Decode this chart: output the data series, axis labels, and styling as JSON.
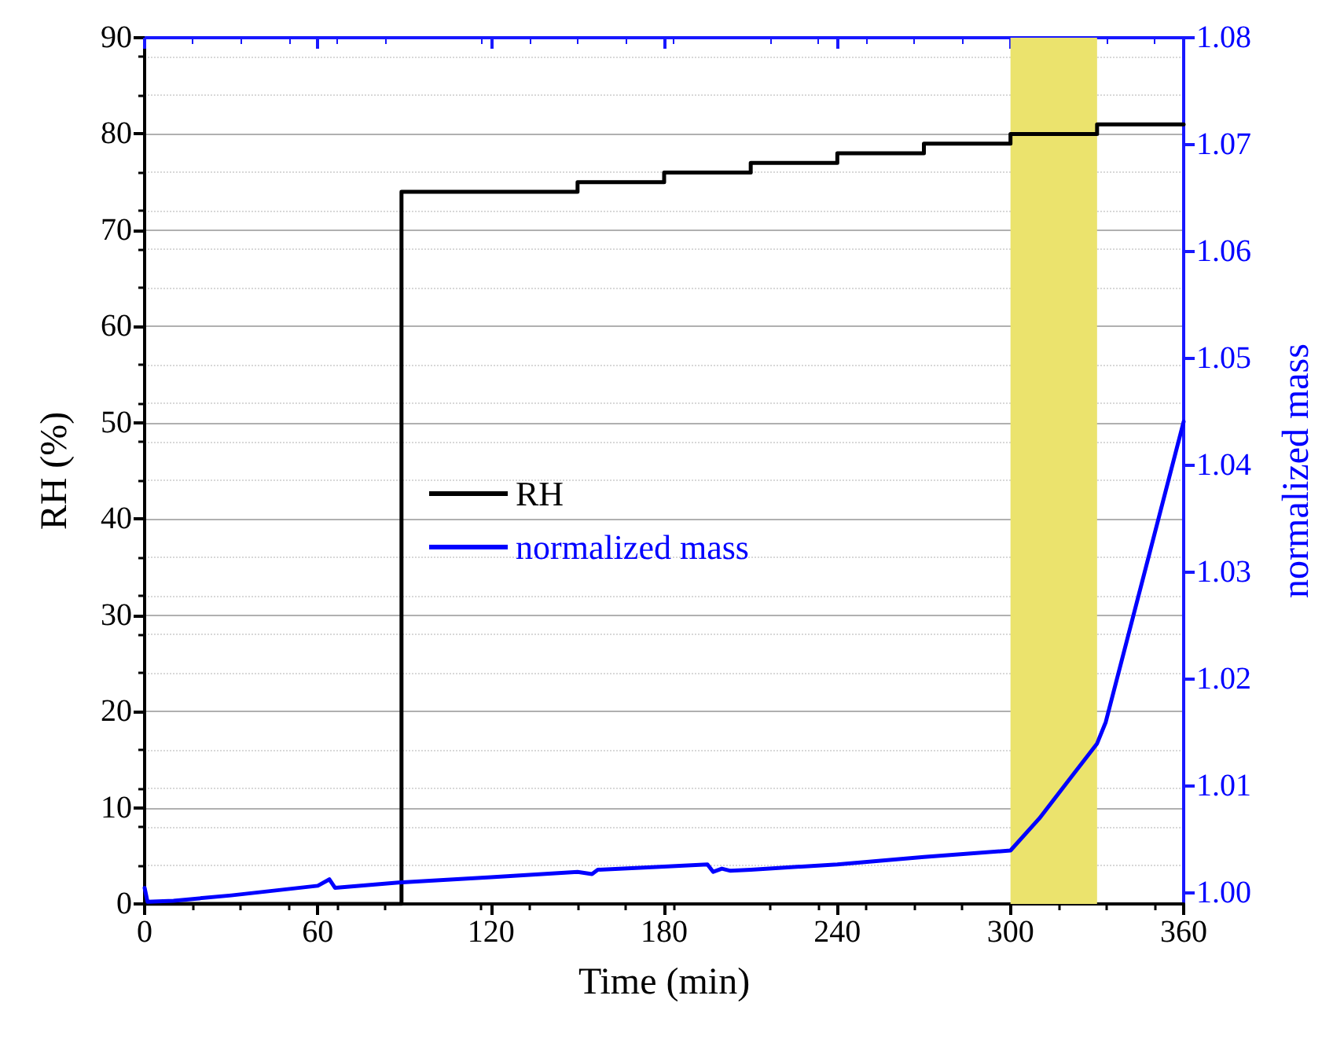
{
  "chart_data": {
    "type": "line",
    "xlabel": "Time (min)",
    "ylabel": "RH (%)",
    "y2label": "normalized mass",
    "xlim": [
      0,
      360
    ],
    "xticks": [
      0,
      60,
      120,
      180,
      240,
      300,
      360
    ],
    "ylim": [
      0,
      90
    ],
    "yticks": [
      0,
      10,
      20,
      30,
      40,
      50,
      60,
      70,
      80,
      90
    ],
    "y2lim": [
      0.999,
      1.08
    ],
    "y2ticks": [
      {
        "value": 1,
        "label": "1.00"
      },
      {
        "value": 1.01,
        "label": "1.01"
      },
      {
        "value": 1.02,
        "label": "1.02"
      },
      {
        "value": 1.03,
        "label": "1.03"
      },
      {
        "value": 1.04,
        "label": "1.04"
      },
      {
        "value": 1.05,
        "label": "1.05"
      },
      {
        "value": 1.06,
        "label": "1.06"
      },
      {
        "value": 1.07,
        "label": "1.07"
      },
      {
        "value": 1.08,
        "label": "1.08"
      }
    ],
    "grid": "y",
    "legend": "left",
    "marker": "none",
    "line_style": "solid",
    "bands": [
      {
        "axis": "x",
        "from": 300,
        "to": 330,
        "color": "#ebe36d"
      }
    ],
    "series": [
      {
        "name": "RH",
        "type": "step",
        "color": "#000000",
        "x": [
          0,
          88,
          89,
          150,
          180,
          210,
          240,
          270,
          300,
          330,
          360
        ],
        "values": [
          0,
          0,
          74,
          75,
          76,
          77,
          78,
          79,
          80,
          81,
          81
        ]
      },
      {
        "name": "normalized mass",
        "axis": "y2",
        "color": "#0000ff",
        "x": [
          0,
          1,
          10,
          30,
          60,
          64,
          66,
          88,
          120,
          150,
          155,
          157,
          180,
          195,
          197,
          200,
          203,
          210,
          240,
          270,
          300,
          310,
          320,
          330,
          333,
          360
        ],
        "values": [
          1.0005,
          0.9992,
          0.9993,
          0.9998,
          1.0007,
          1.0013,
          1.0005,
          1.001,
          1.0015,
          1.002,
          1.0018,
          1.0022,
          1.0025,
          1.0027,
          1.002,
          1.0023,
          1.0021,
          1.0022,
          1.0027,
          1.0034,
          1.004,
          1.007,
          1.0105,
          1.014,
          1.016,
          1.0441
        ]
      }
    ]
  }
}
